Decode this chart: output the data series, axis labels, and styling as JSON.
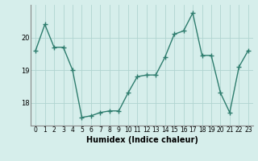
{
  "xlabel": "Humidex (Indice chaleur)",
  "ylabel": "",
  "bg_color": "#d6eeeb",
  "grid_color": "#b0d4d0",
  "line_color": "#2e7d6e",
  "x_values": [
    0,
    1,
    2,
    3,
    4,
    5,
    6,
    7,
    8,
    9,
    10,
    11,
    12,
    13,
    14,
    15,
    16,
    17,
    18,
    19,
    20,
    21,
    22,
    23
  ],
  "y_values": [
    19.6,
    20.4,
    19.7,
    19.7,
    19.0,
    17.55,
    17.6,
    17.7,
    17.75,
    17.75,
    18.3,
    18.8,
    18.85,
    18.85,
    19.4,
    20.1,
    20.2,
    20.75,
    19.45,
    19.45,
    18.3,
    17.7,
    19.1,
    19.6
  ],
  "xlim": [
    -0.5,
    23.5
  ],
  "ylim": [
    17.3,
    21.0
  ],
  "yticks": [
    18,
    19,
    20
  ],
  "xticks": [
    0,
    1,
    2,
    3,
    4,
    5,
    6,
    7,
    8,
    9,
    10,
    11,
    12,
    13,
    14,
    15,
    16,
    17,
    18,
    19,
    20,
    21,
    22,
    23
  ],
  "marker": "+",
  "linewidth": 1.0,
  "markersize": 4,
  "tick_fontsize": 5.5,
  "xlabel_fontsize": 7.0
}
